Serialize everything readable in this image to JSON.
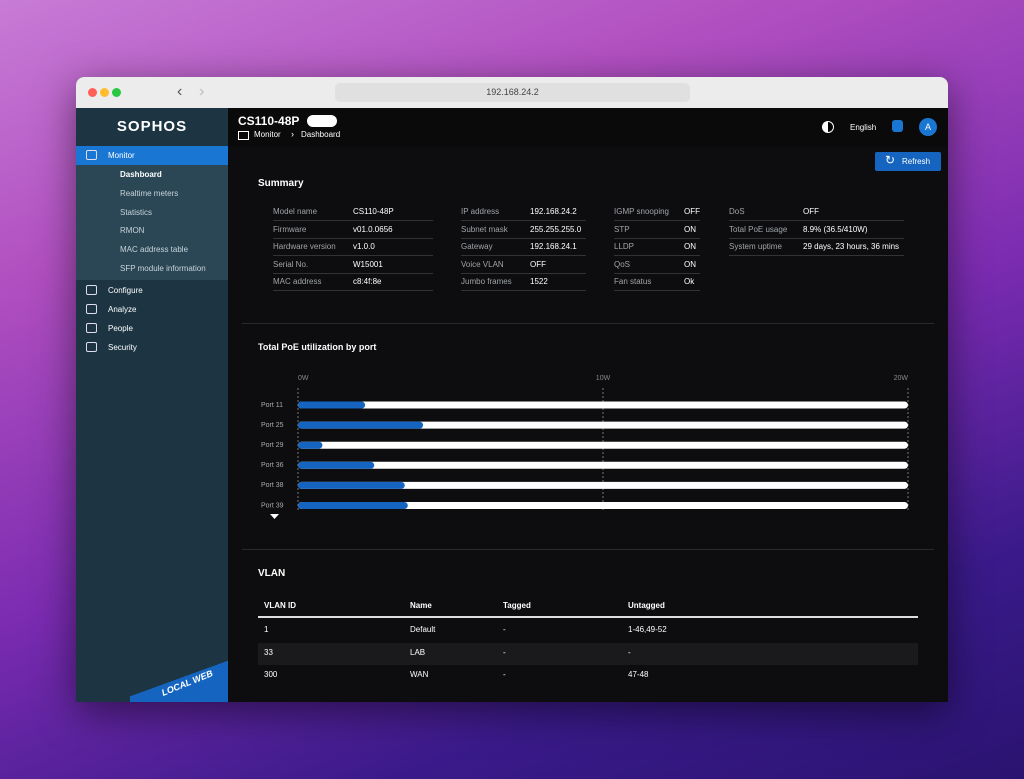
{
  "browser": {
    "url": "192.168.24.2"
  },
  "app": {
    "logo": "SOPHOS",
    "device": "CS110-48P",
    "breadcrumb": [
      "Monitor",
      "Dashboard"
    ],
    "language": "English",
    "avatar": "A",
    "refresh": "Refresh",
    "badge": "LOCAL WEB"
  },
  "nav": [
    {
      "label": "Monitor",
      "children": [
        "Dashboard",
        "Realtime meters",
        "Statistics",
        "RMON",
        "MAC address table",
        "SFP module information"
      ]
    },
    {
      "label": "Configure",
      "children": []
    },
    {
      "label": "Analyze",
      "children": []
    },
    {
      "label": "People",
      "children": []
    },
    {
      "label": "Security",
      "children": []
    }
  ],
  "summary": {
    "title": "Summary",
    "columns": [
      [
        [
          "Model name",
          "CS110-48P"
        ],
        [
          "Firmware",
          "v01.0.0656"
        ],
        [
          "Hardware version",
          "v1.0.0"
        ],
        [
          "Serial No.",
          "W15001"
        ],
        [
          "MAC address",
          "c8:4f:8e"
        ]
      ],
      [
        [
          "IP address",
          "192.168.24.2"
        ],
        [
          "Subnet mask",
          "255.255.255.0"
        ],
        [
          "Gateway",
          "192.168.24.1"
        ],
        [
          "Voice VLAN",
          "OFF"
        ],
        [
          "Jumbo frames",
          "1522"
        ]
      ],
      [
        [
          "IGMP snooping",
          "OFF"
        ],
        [
          "STP",
          "ON"
        ],
        [
          "LLDP",
          "ON"
        ],
        [
          "QoS",
          "ON"
        ],
        [
          "Fan status",
          "Ok"
        ]
      ],
      [
        [
          "DoS",
          "OFF"
        ],
        [
          "Total PoE usage",
          "8.9% (36.5/410W)"
        ],
        [
          "System uptime",
          "29 days, 23 hours, 36 mins"
        ]
      ]
    ]
  },
  "poe": {
    "type": "bar",
    "title": "Total PoE utilization by port",
    "categories": [
      "Port 11",
      "Port 25",
      "Port 29",
      "Port 36",
      "Port 38",
      "Port 39"
    ],
    "values": [
      2.2,
      4.1,
      0.8,
      2.5,
      3.5,
      3.6
    ],
    "color": "#1565c0",
    "xlim": [
      0,
      20
    ],
    "xticks": [
      {
        "value": 0,
        "label": "0W"
      },
      {
        "value": 10,
        "label": "10W"
      },
      {
        "value": 20,
        "label": "20W"
      }
    ],
    "grid": true
  },
  "vlan": {
    "title": "VLAN",
    "headers": [
      "VLAN ID",
      "Name",
      "Tagged",
      "Untagged"
    ],
    "rows": [
      [
        "1",
        "Default",
        "-",
        "1-46,49-52"
      ],
      [
        "33",
        "LAB",
        "-",
        "-"
      ],
      [
        "300",
        "WAN",
        "-",
        "47-48"
      ]
    ]
  }
}
